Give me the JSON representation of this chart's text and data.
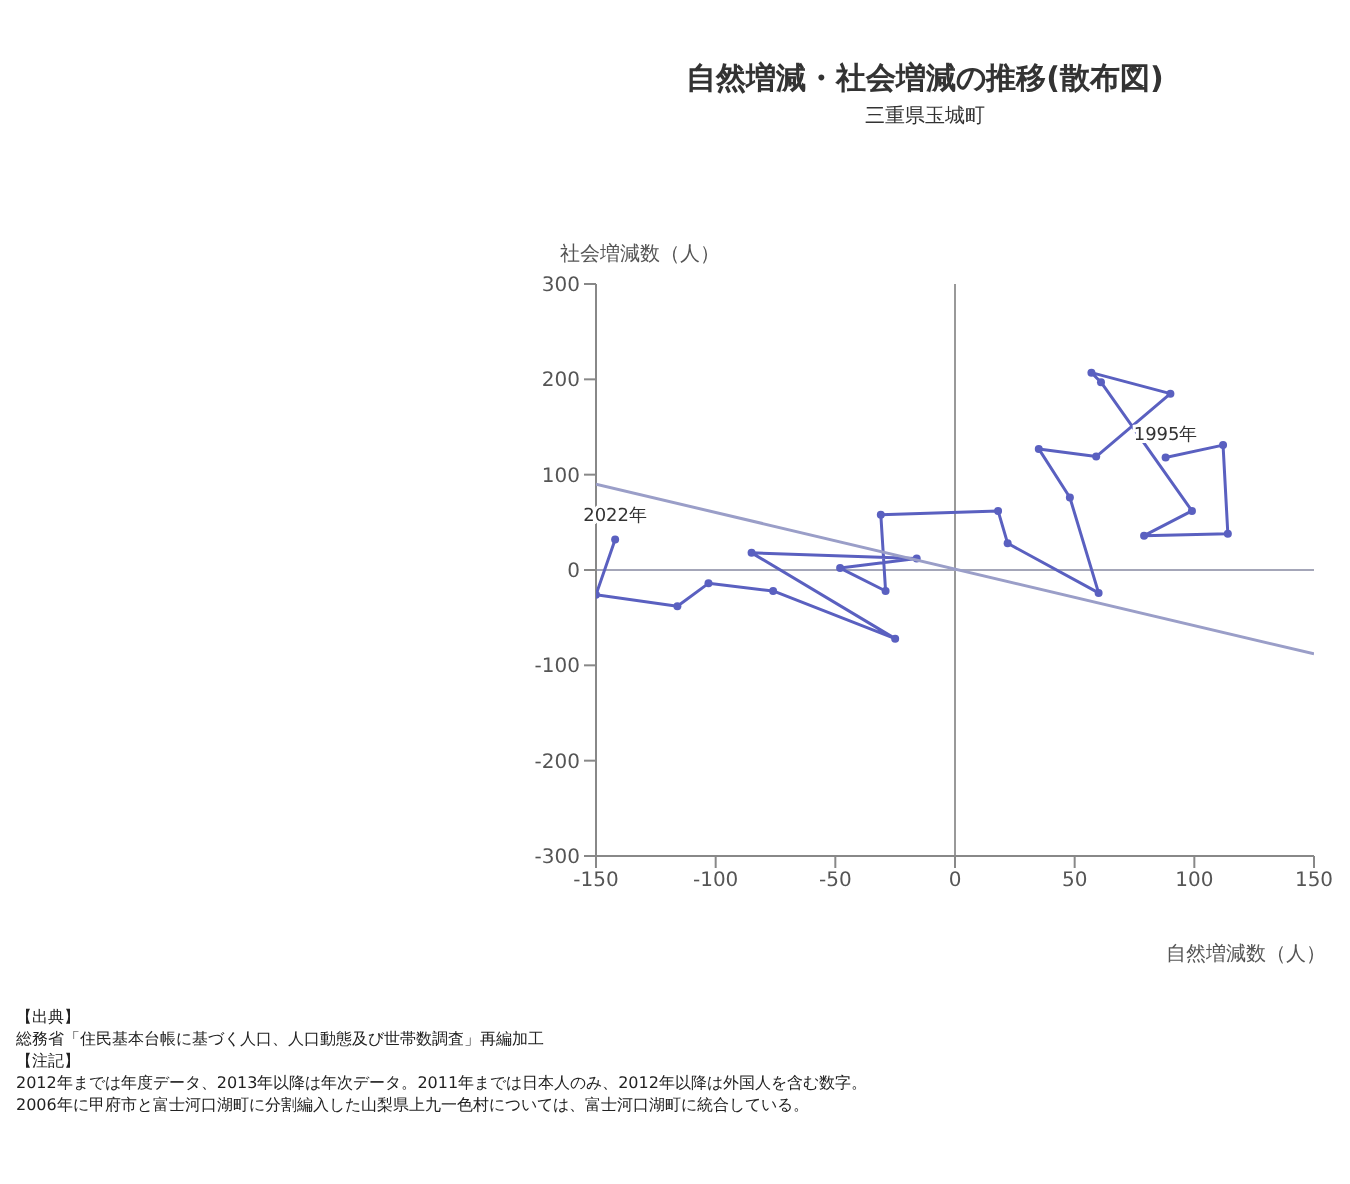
{
  "chart_data": {
    "type": "line",
    "title": "自然増減・社会増減の推移(散布図)",
    "subtitle": "三重県玉城町",
    "xlabel": "自然増減数（人）",
    "ylabel": "社会増減数（人）",
    "xlim": [
      -150,
      150
    ],
    "ylim": [
      -300,
      300
    ],
    "xticks": [
      -150,
      -100,
      -50,
      0,
      50,
      100,
      150
    ],
    "yticks": [
      -300,
      -200,
      -100,
      0,
      100,
      200,
      300
    ],
    "grid": false,
    "series": [
      {
        "marker": "circle",
        "color": "#5a60c0",
        "x": [
          88,
          112,
          114,
          79,
          99,
          61,
          57,
          90,
          59,
          35,
          48,
          60,
          22,
          18,
          -31,
          -29,
          -48,
          -16,
          -85,
          -25,
          -76,
          -103,
          -116,
          -150,
          -142
        ],
        "values": [
          118,
          131,
          38,
          36,
          62,
          197,
          207,
          185,
          119,
          127,
          76,
          -24,
          28,
          62,
          58,
          -22,
          2,
          12,
          18,
          -72,
          -22,
          -14,
          -38,
          -26,
          32
        ]
      },
      {
        "marker": "none",
        "color": "#9a9ec8",
        "x": [
          -150,
          150
        ],
        "values": [
          90,
          -88
        ]
      }
    ],
    "ref_lines": [
      {
        "axis": "x",
        "value": 0,
        "color": "#999999"
      },
      {
        "axis": "y",
        "value": 0,
        "color": "#a4a6b8"
      }
    ],
    "annotations": [
      {
        "text": "1995年",
        "x": 88,
        "y": 118
      },
      {
        "text": "2022年",
        "x": -142,
        "y": 32
      },
      "【出典】",
      "総務省「住民基本台帳に基づく人口、人口動態及び世帯数調査」再編加工",
      "【注記】",
      "2012年までは年度データ、2013年以降は年次データ。2011年までは日本人のみ、2012年以降は外国人を含む数字。",
      "2006年に甲府市と富士河口湖町に分割編入した山梨県上九一色村については、富士河口湖町に統合している。"
    ]
  }
}
